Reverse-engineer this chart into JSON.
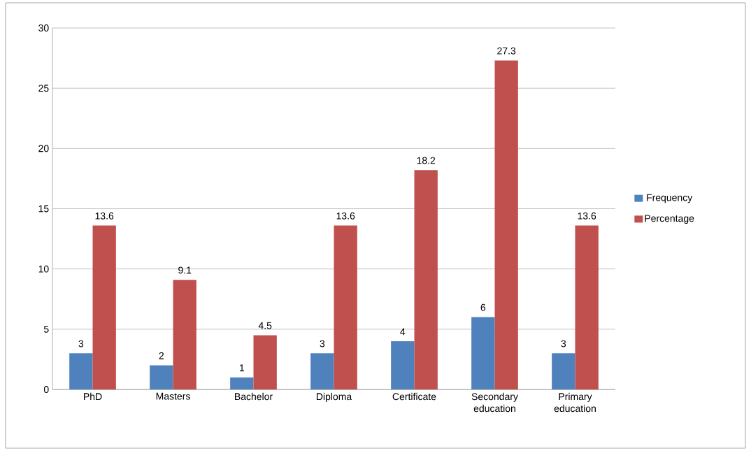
{
  "chart_data": {
    "type": "bar",
    "categories": [
      "PhD",
      "Masters",
      "Bachelor",
      "Diploma",
      "Certificate",
      "Secondary education",
      "Primary education"
    ],
    "series": [
      {
        "name": "Frequency",
        "color": "#4f81bd",
        "values": [
          3,
          2,
          1,
          3,
          4,
          6,
          3
        ]
      },
      {
        "name": "Percentage",
        "color": "#c0504d",
        "values": [
          13.6,
          9.1,
          4.5,
          13.6,
          18.2,
          27.3,
          13.6
        ]
      }
    ],
    "ylim": [
      0,
      30
    ],
    "yticks": [
      0,
      5,
      10,
      15,
      20,
      25,
      30
    ],
    "grid": "y",
    "legend": "right",
    "data_labels": true
  }
}
